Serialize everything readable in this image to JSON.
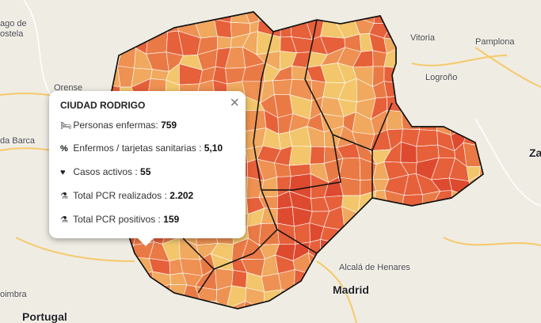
{
  "popup": {
    "title": "CIUDAD RODRIGO",
    "close": "×",
    "rows": [
      {
        "label": "Personas enfermas: ",
        "value": "759"
      },
      {
        "label": "Enfermos / tarjetas sanitarias : ",
        "value": "5,10"
      },
      {
        "label": "Casos activos : ",
        "value": "55"
      },
      {
        "label": "Total PCR realizados : ",
        "value": "2.202"
      },
      {
        "label": "Total PCR positivos : ",
        "value": "159"
      }
    ]
  },
  "places": [
    "ago de",
    "ostela",
    "Orense",
    "da Barca",
    "Portugal",
    "oimbra",
    "Vitoria",
    "Pamplona",
    "Logroño",
    "Za",
    "Alcalá de Henares",
    "Madrid"
  ]
}
